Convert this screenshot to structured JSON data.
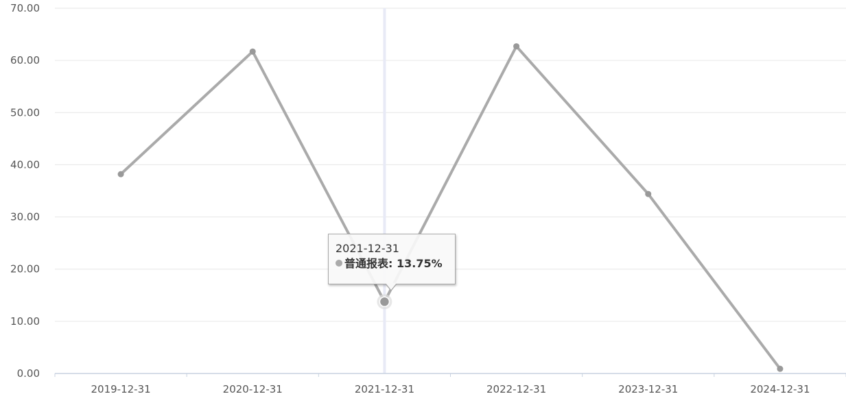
{
  "chart_data": {
    "type": "line",
    "categories": [
      "2019-12-31",
      "2020-12-31",
      "2021-12-31",
      "2022-12-31",
      "2023-12-31",
      "2024-12-31"
    ],
    "series": [
      {
        "name": "普通报表",
        "values": [
          38.2,
          61.7,
          13.75,
          62.7,
          34.4,
          0.9
        ],
        "color": "#aaaaaa"
      }
    ],
    "ylim": [
      0,
      70
    ],
    "yticks": [
      "0.00",
      "10.00",
      "20.00",
      "30.00",
      "40.00",
      "50.00",
      "60.00",
      "70.00"
    ],
    "grid": true,
    "title": "",
    "xlabel": "",
    "ylabel": "",
    "tooltip": {
      "date": "2021-12-31",
      "label": "普通报表: 13.75%",
      "index": 2
    },
    "colors": {
      "line": "#aaaaaa",
      "marker": "#999999",
      "grid": "#e6e6e6",
      "axis": "#c8d2e0",
      "crosshair": "#e8eaf6"
    }
  }
}
